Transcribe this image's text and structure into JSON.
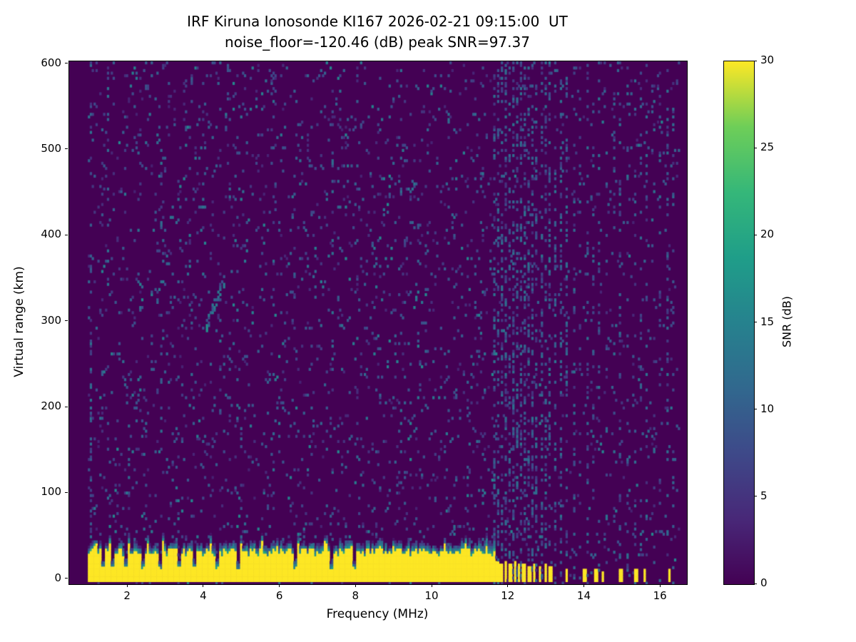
{
  "chart_data": {
    "type": "heatmap",
    "title_line1": "IRF Kiruna Ionosonde KI167 2026-02-21 09:15:00  UT",
    "title_line2": "noise_floor=-120.46 (dB) peak SNR=97.37",
    "xlabel": "Frequency (MHz)",
    "ylabel": "Virtual range (km)",
    "colorbar_label": "SNR (dB)",
    "xlim": [
      0.46,
      16.69
    ],
    "ylim": [
      -6,
      603
    ],
    "x_ticks": [
      2,
      4,
      6,
      8,
      10,
      12,
      14,
      16
    ],
    "y_ticks": [
      0,
      100,
      200,
      300,
      400,
      500,
      600
    ],
    "colorbar_ticks": [
      0,
      5,
      10,
      15,
      20,
      25,
      30
    ],
    "colorbar_range": [
      0,
      30
    ],
    "colormap": "viridis",
    "viridis_stops": [
      [
        0,
        "#440154"
      ],
      [
        0.125,
        "#482878"
      ],
      [
        0.25,
        "#3e4989"
      ],
      [
        0.375,
        "#31688e"
      ],
      [
        0.5,
        "#26828e"
      ],
      [
        0.625,
        "#1f9e89"
      ],
      [
        0.75,
        "#35b779"
      ],
      [
        0.875,
        "#6ece58"
      ],
      [
        1,
        "#fde725"
      ]
    ],
    "grid": {
      "f0": 0.95,
      "f1": 16.45,
      "df": 0.05,
      "r0": -6,
      "r1": 600,
      "dr": 3
    },
    "noise_snr_db": 0,
    "speckle": {
      "p_low": 0.05,
      "p_high": 0.028
    },
    "ground_band": {
      "f_start": 0.95,
      "f_end": 11.62,
      "top_base": 26,
      "top_jitter": 10,
      "snr_db": 30,
      "notches": [
        1.35,
        1.6,
        1.95,
        2.35,
        2.8,
        3.3,
        3.7,
        4.3,
        4.85,
        6.35,
        7.3,
        7.9
      ]
    },
    "rfi_stripes": [
      {
        "f": 1.0,
        "p": 0.18
      },
      {
        "f": 1.45,
        "p": 0.06
      },
      {
        "f": 2.85,
        "p": 0.05
      },
      {
        "f": 4.65,
        "p": 0.05
      },
      {
        "f": 5.8,
        "p": 0.05
      },
      {
        "f": 7.35,
        "p": 0.08
      },
      {
        "f": 9.15,
        "p": 0.05
      },
      {
        "f": 10.4,
        "p": 0.05
      },
      {
        "f": 11.62,
        "p": 0.3
      },
      {
        "f": 11.72,
        "p": 0.32
      },
      {
        "f": 11.82,
        "p": 0.28
      },
      {
        "f": 11.92,
        "p": 0.33
      },
      {
        "f": 12.02,
        "p": 0.3
      },
      {
        "f": 12.12,
        "p": 0.34
      },
      {
        "f": 12.22,
        "p": 0.28
      },
      {
        "f": 12.32,
        "p": 0.32
      },
      {
        "f": 12.42,
        "p": 0.3
      },
      {
        "f": 12.52,
        "p": 0.28
      },
      {
        "f": 12.62,
        "p": 0.33
      },
      {
        "f": 12.72,
        "p": 0.3
      },
      {
        "f": 12.85,
        "p": 0.3
      },
      {
        "f": 12.95,
        "p": 0.28
      },
      {
        "f": 13.05,
        "p": 0.3
      },
      {
        "f": 13.2,
        "p": 0.26
      },
      {
        "f": 13.35,
        "p": 0.28
      },
      {
        "f": 13.5,
        "p": 0.26
      },
      {
        "f": 13.7,
        "p": 0.15
      },
      {
        "f": 13.85,
        "p": 0.12
      },
      {
        "f": 14.05,
        "p": 0.18
      },
      {
        "f": 14.2,
        "p": 0.12
      },
      {
        "f": 14.35,
        "p": 0.15
      },
      {
        "f": 14.55,
        "p": 0.1
      },
      {
        "f": 14.75,
        "p": 0.12
      },
      {
        "f": 14.9,
        "p": 0.15
      },
      {
        "f": 15.1,
        "p": 0.12
      },
      {
        "f": 15.3,
        "p": 0.1
      },
      {
        "f": 15.45,
        "p": 0.12
      },
      {
        "f": 15.6,
        "p": 0.15
      },
      {
        "f": 15.8,
        "p": 0.1
      },
      {
        "f": 15.95,
        "p": 0.12
      },
      {
        "f": 16.15,
        "p": 0.15
      },
      {
        "f": 16.3,
        "p": 0.1
      }
    ],
    "hf_pulses": [
      {
        "f": 11.68,
        "h": 20
      },
      {
        "f": 11.78,
        "h": 18
      },
      {
        "f": 11.9,
        "h": 20
      },
      {
        "f": 12.02,
        "h": 17
      },
      {
        "f": 12.14,
        "h": 19
      },
      {
        "f": 12.26,
        "h": 16
      },
      {
        "f": 12.38,
        "h": 18
      },
      {
        "f": 12.52,
        "h": 15
      },
      {
        "f": 12.66,
        "h": 17
      },
      {
        "f": 12.8,
        "h": 14
      },
      {
        "f": 12.95,
        "h": 16
      },
      {
        "f": 13.07,
        "h": 13
      },
      {
        "f": 13.5,
        "h": 12
      },
      {
        "f": 13.98,
        "h": 11
      },
      {
        "f": 14.28,
        "h": 12
      },
      {
        "f": 14.45,
        "h": 9
      },
      {
        "f": 14.93,
        "h": 12
      },
      {
        "f": 15.33,
        "h": 10
      },
      {
        "f": 15.55,
        "h": 11
      },
      {
        "f": 16.2,
        "h": 10
      }
    ],
    "echo_trace": {
      "f_start": 4.0,
      "f_end": 4.5,
      "r_start": 290,
      "r_end": 345,
      "snr_db_range": [
        7,
        17
      ]
    }
  }
}
